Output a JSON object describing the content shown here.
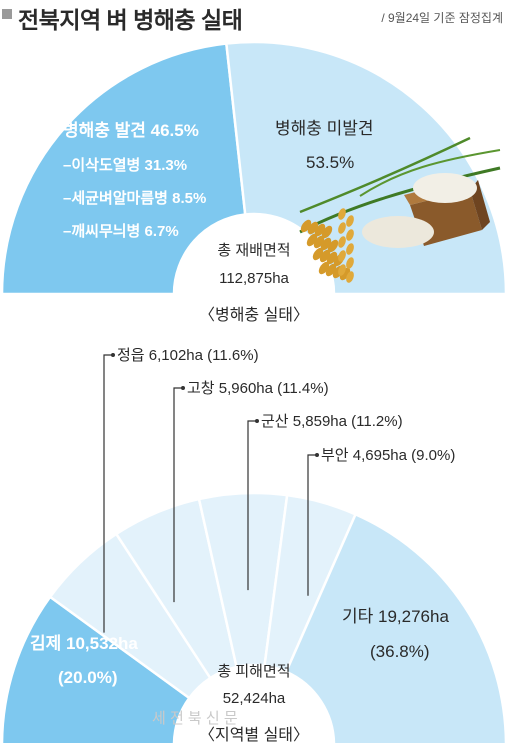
{
  "header": {
    "title": "전북지역 벼 병해충 실태",
    "note": "/ 9월24일 기준 잠정집계"
  },
  "colors": {
    "dark_blue": "#7ec8ef",
    "light_blue": "#c8e7f8",
    "pale_blue": "#e3f2fb",
    "text_dark": "#2a2a2a",
    "text_white": "#ffffff"
  },
  "chart_data": [
    {
      "type": "pie",
      "caption": "〈병해충 실태〉",
      "center_label": "총 재배면적",
      "center_value": "112,875ha",
      "slices": [
        {
          "name": "병해충 발견",
          "value": 46.5,
          "label": "병해충 발견 46.5%",
          "sub_items": [
            {
              "name": "이삭도열병",
              "value": 31.3,
              "label": "–이삭도열병 31.3%"
            },
            {
              "name": "세균벼알마름병",
              "value": 8.5,
              "label": "–세균벼알마름병 8.5%"
            },
            {
              "name": "깨씨무늬병",
              "value": 6.7,
              "label": "–깨씨무늬병 6.7%"
            }
          ]
        },
        {
          "name": "병해충 미발견",
          "value": 53.5,
          "label": "병해충 미발견",
          "value_label": "53.5%"
        }
      ]
    },
    {
      "type": "pie",
      "caption": "〈지역별 실태〉",
      "center_label": "총 피해면적",
      "center_value": "52,424ha",
      "slices": [
        {
          "name": "김제",
          "area": 10532,
          "value": 20.0,
          "label": "김제 10,532ha",
          "value_label": "(20.0%)"
        },
        {
          "name": "정읍",
          "area": 6102,
          "value": 11.6,
          "label": "정읍 6,102ha (11.6%)"
        },
        {
          "name": "고창",
          "area": 5960,
          "value": 11.4,
          "label": "고창 5,960ha (11.4%)"
        },
        {
          "name": "군산",
          "area": 5859,
          "value": 11.2,
          "label": "군산 5,859ha (11.2%)"
        },
        {
          "name": "부안",
          "area": 4695,
          "value": 9.0,
          "label": "부안 4,695ha (9.0%)"
        },
        {
          "name": "기타",
          "area": 19276,
          "value": 36.8,
          "label": "기타 19,276ha",
          "value_label": "(36.8%)"
        }
      ]
    }
  ],
  "watermark": "세 전 북 신 문"
}
